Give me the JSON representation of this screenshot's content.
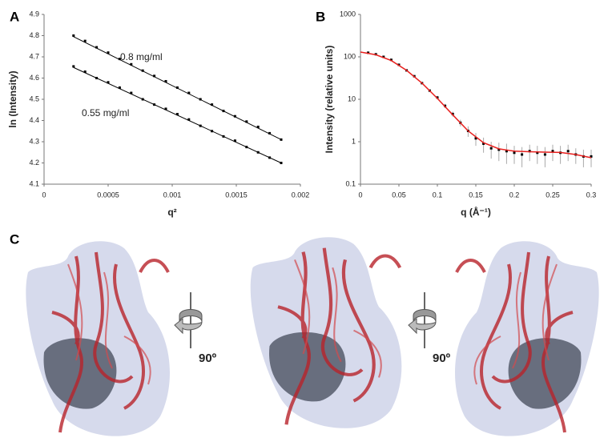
{
  "chart_data": [
    {
      "type": "scatter",
      "panel": "A",
      "y_label": "ln (Intensity)",
      "x_label": "q²",
      "xlim": [
        0,
        0.002
      ],
      "xticks": [
        0,
        0.0005,
        0.001,
        0.0015,
        0.002
      ],
      "ylim": [
        4.1,
        4.9
      ],
      "yticks": [
        4.1,
        4.2,
        4.3,
        4.4,
        4.5,
        4.6,
        4.7,
        4.8,
        4.9
      ],
      "series": [
        {
          "name": "0.8 mg/ml",
          "color": "#000000",
          "x": [
            0.00023,
            0.00032,
            0.00041,
            0.0005,
            0.00059,
            0.00068,
            0.00077,
            0.00086,
            0.00095,
            0.00104,
            0.00113,
            0.00122,
            0.00131,
            0.0014,
            0.00149,
            0.00158,
            0.00167,
            0.00176,
            0.00185
          ],
          "values": [
            4.8,
            4.775,
            4.745,
            4.72,
            4.69,
            4.665,
            4.635,
            4.61,
            4.585,
            4.555,
            4.53,
            4.5,
            4.475,
            4.445,
            4.42,
            4.395,
            4.37,
            4.34,
            4.31
          ],
          "fit": {
            "x": [
              0.00023,
              0.00185
            ],
            "values": [
              4.795,
              4.31
            ]
          }
        },
        {
          "name": "0.55 mg/ml",
          "color": "#000000",
          "x": [
            0.00023,
            0.00032,
            0.00041,
            0.0005,
            0.00059,
            0.00068,
            0.00077,
            0.00086,
            0.00095,
            0.00104,
            0.00113,
            0.00122,
            0.00131,
            0.0014,
            0.00149,
            0.00158,
            0.00167,
            0.00176,
            0.00185
          ],
          "values": [
            4.655,
            4.63,
            4.6,
            4.58,
            4.555,
            4.53,
            4.5,
            4.475,
            4.455,
            4.43,
            4.405,
            4.375,
            4.35,
            4.325,
            4.305,
            4.275,
            4.25,
            4.225,
            4.2
          ],
          "fit": {
            "x": [
              0.00023,
              0.00185
            ],
            "values": [
              4.65,
              4.2
            ]
          }
        }
      ]
    },
    {
      "type": "scatter",
      "panel": "B",
      "y_label": "Intensity (relative units)",
      "x_label": "q (Å⁻¹)",
      "xlim": [
        0,
        0.3
      ],
      "xticks": [
        0,
        0.05,
        0.1,
        0.15,
        0.2,
        0.25,
        0.3
      ],
      "ylim": [
        0.1,
        1000
      ],
      "yticks": [
        0.1,
        1,
        10,
        100,
        1000
      ],
      "log_y": true,
      "series": [
        {
          "color": "#000000",
          "error_color": "#aaaaaa",
          "x": [
            0.01,
            0.02,
            0.03,
            0.04,
            0.05,
            0.06,
            0.07,
            0.08,
            0.09,
            0.1,
            0.11,
            0.12,
            0.13,
            0.14,
            0.15,
            0.16,
            0.17,
            0.18,
            0.19,
            0.2,
            0.21,
            0.22,
            0.23,
            0.24,
            0.25,
            0.26,
            0.27,
            0.28,
            0.29,
            0.3
          ],
          "values": [
            125,
            115,
            100,
            85,
            65,
            48,
            35,
            24,
            16,
            11,
            7,
            4.5,
            2.8,
            1.8,
            1.2,
            0.9,
            0.7,
            0.65,
            0.6,
            0.55,
            0.5,
            0.6,
            0.55,
            0.5,
            0.6,
            0.55,
            0.6,
            0.5,
            0.45,
            0.45
          ],
          "errors": [
            3,
            3,
            3,
            2,
            2,
            2,
            1.5,
            1,
            1,
            1,
            0.8,
            0.6,
            0.5,
            0.5,
            0.4,
            0.35,
            0.3,
            0.3,
            0.3,
            0.25,
            0.25,
            0.25,
            0.25,
            0.25,
            0.25,
            0.25,
            0.25,
            0.2,
            0.2,
            0.2
          ]
        },
        {
          "color": "#e8201e",
          "x": [
            0,
            0.02,
            0.04,
            0.06,
            0.08,
            0.1,
            0.12,
            0.14,
            0.16,
            0.18,
            0.2,
            0.22,
            0.24,
            0.26,
            0.28,
            0.3
          ],
          "values": [
            130,
            112,
            82,
            48,
            24,
            10.5,
            4.3,
            1.8,
            0.95,
            0.68,
            0.6,
            0.58,
            0.57,
            0.56,
            0.5,
            0.42
          ]
        }
      ]
    }
  ],
  "panel_c": {
    "label": "C",
    "rotation_labels": [
      "90º",
      "90º"
    ]
  }
}
